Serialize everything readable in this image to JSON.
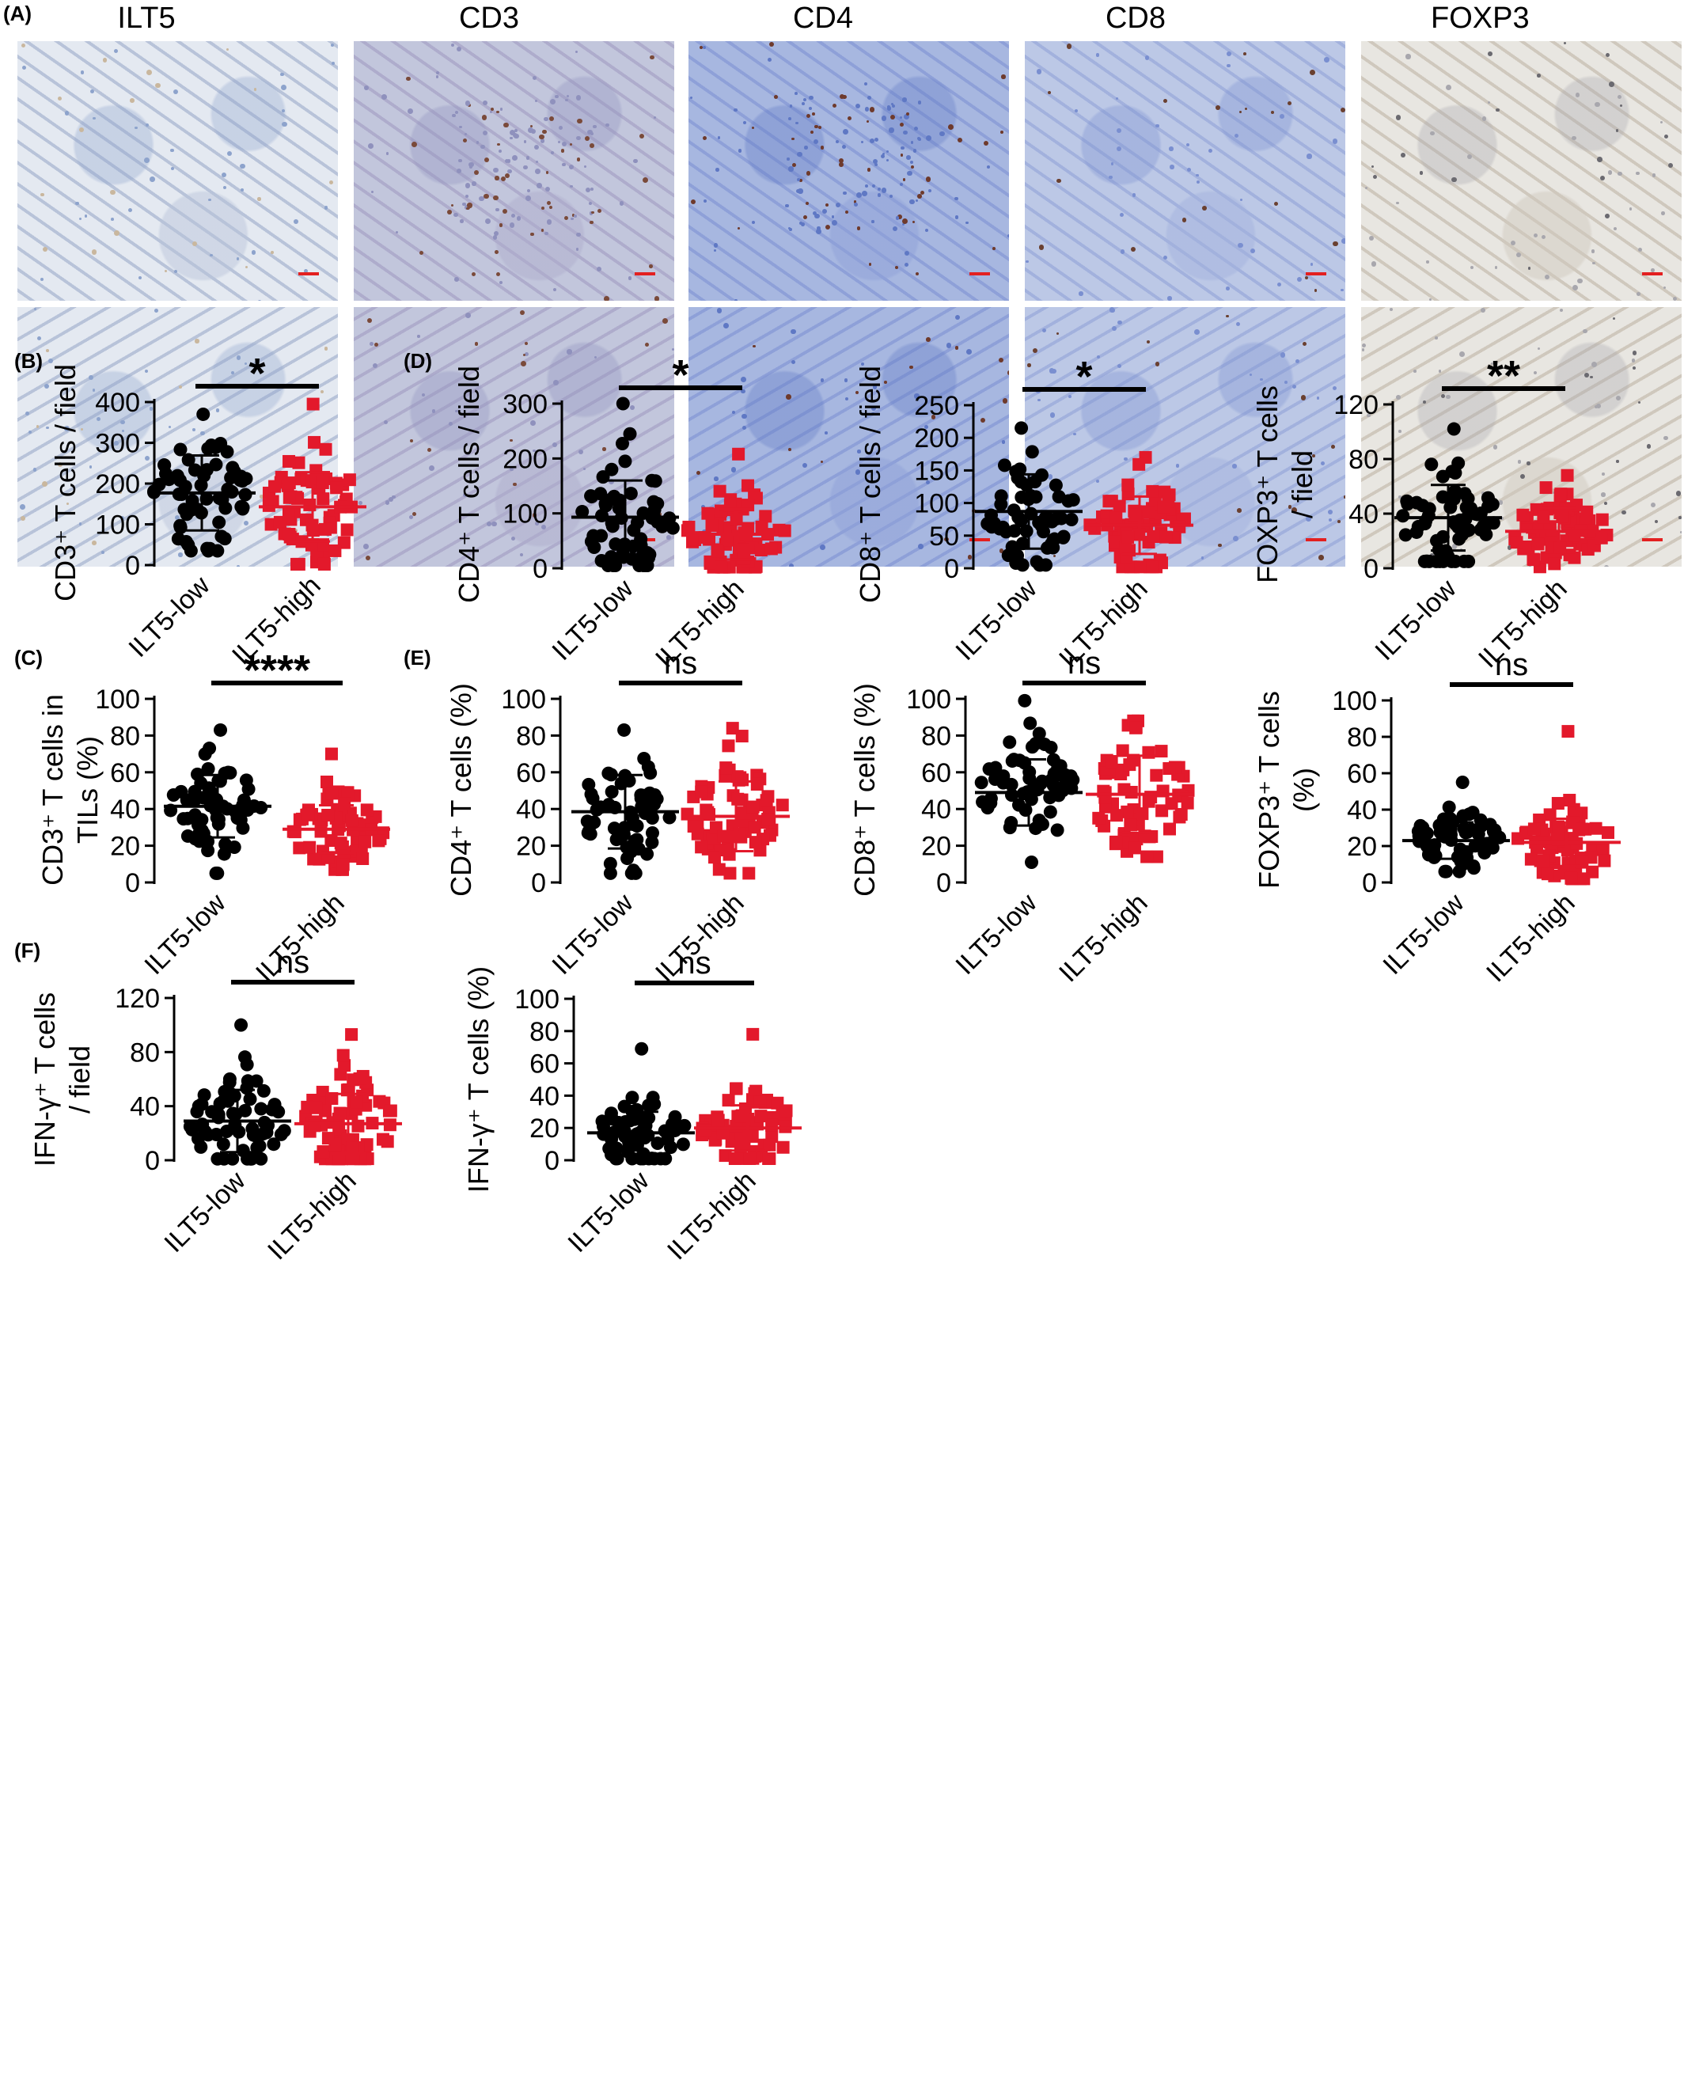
{
  "colors": {
    "low": "#000000",
    "high": "#e3192b",
    "scalebar": "#e32020"
  },
  "micrograph": {
    "panel_label": "(A)",
    "columns": [
      "ILT5",
      "CD3",
      "CD4",
      "CD8",
      "FOXP3"
    ],
    "rows": 2
  },
  "chart_data": [
    {
      "id": "B",
      "panel_label": "(B)",
      "type": "scatter",
      "ylabel": "CD3⁺ T cells / field",
      "categories": [
        "ILT5-low",
        "ILT5-high"
      ],
      "ylim": [
        0,
        400
      ],
      "yticks": [
        0,
        100,
        200,
        300,
        400
      ],
      "significance": "*",
      "series": [
        {
          "name": "ILT5-low",
          "mean": 177,
          "sd": 92,
          "min": 35,
          "max": 370,
          "n": 62,
          "marker": "circle"
        },
        {
          "name": "ILT5-high",
          "mean": 143,
          "sd": 85,
          "min": 2,
          "max": 395,
          "n": 70,
          "marker": "square"
        }
      ]
    },
    {
      "id": "D1",
      "panel_label": "(D)",
      "type": "scatter",
      "ylabel": "CD4⁺ T cells / field",
      "categories": [
        "ILT5-low",
        "ILT5-high"
      ],
      "ylim": [
        0,
        300
      ],
      "yticks": [
        0,
        100,
        200,
        300
      ],
      "significance": "*",
      "series": [
        {
          "name": "ILT5-low",
          "mean": 93,
          "sd": 67,
          "min": 5,
          "max": 300,
          "n": 62,
          "marker": "circle"
        },
        {
          "name": "ILT5-high",
          "mean": 62,
          "sd": 46,
          "min": 2,
          "max": 208,
          "n": 70,
          "marker": "square"
        }
      ]
    },
    {
      "id": "D2",
      "panel_label": "",
      "type": "scatter",
      "ylabel": "CD8⁺ T cells / field",
      "categories": [
        "ILT5-low",
        "ILT5-high"
      ],
      "ylim": [
        0,
        250
      ],
      "yticks": [
        0,
        50,
        100,
        150,
        200,
        250
      ],
      "significance": "*",
      "series": [
        {
          "name": "ILT5-low",
          "mean": 87,
          "sd": 57,
          "min": 5,
          "max": 215,
          "n": 62,
          "marker": "circle"
        },
        {
          "name": "ILT5-high",
          "mean": 66,
          "sd": 44,
          "min": 2,
          "max": 170,
          "n": 70,
          "marker": "square"
        }
      ]
    },
    {
      "id": "D3",
      "panel_label": "",
      "type": "scatter",
      "ylabel": "FOXP3⁺ T cells / field",
      "categories": [
        "ILT5-low",
        "ILT5-high"
      ],
      "ylim": [
        0,
        120
      ],
      "yticks": [
        0,
        40,
        80,
        120
      ],
      "significance": "**",
      "series": [
        {
          "name": "ILT5-low",
          "mean": 37,
          "sd": 24,
          "min": 5,
          "max": 102,
          "n": 62,
          "marker": "circle"
        },
        {
          "name": "ILT5-high",
          "mean": 27,
          "sd": 17,
          "min": 1,
          "max": 68,
          "n": 70,
          "marker": "square"
        }
      ]
    },
    {
      "id": "C",
      "panel_label": "(C)",
      "type": "scatter",
      "ylabel": "CD3⁺ T cells in TILs (%)",
      "categories": [
        "ILT5-low",
        "ILT5-high"
      ],
      "ylim": [
        0,
        100
      ],
      "yticks": [
        0,
        20,
        40,
        60,
        80,
        100
      ],
      "significance": "****",
      "series": [
        {
          "name": "ILT5-low",
          "mean": 41.5,
          "sd": 17,
          "min": 5,
          "max": 83,
          "n": 62,
          "marker": "circle"
        },
        {
          "name": "ILT5-high",
          "mean": 29,
          "sd": 13,
          "min": 7,
          "max": 70,
          "n": 70,
          "marker": "square"
        }
      ]
    },
    {
      "id": "E1",
      "panel_label": "(E)",
      "type": "scatter",
      "ylabel": "CD4⁺ T cells (%)",
      "categories": [
        "ILT5-low",
        "ILT5-high"
      ],
      "ylim": [
        0,
        100
      ],
      "yticks": [
        0,
        20,
        40,
        60,
        80,
        100
      ],
      "significance": "ns",
      "series": [
        {
          "name": "ILT5-low",
          "mean": 38.5,
          "sd": 20,
          "min": 5,
          "max": 83,
          "n": 62,
          "marker": "circle"
        },
        {
          "name": "ILT5-high",
          "mean": 36,
          "sd": 19,
          "min": 5,
          "max": 84,
          "n": 70,
          "marker": "square"
        }
      ]
    },
    {
      "id": "E2",
      "panel_label": "",
      "type": "scatter",
      "ylabel": "CD8⁺ T cells (%)",
      "categories": [
        "ILT5-low",
        "ILT5-high"
      ],
      "ylim": [
        0,
        100
      ],
      "yticks": [
        0,
        20,
        40,
        60,
        80,
        100
      ],
      "significance": "ns",
      "series": [
        {
          "name": "ILT5-low",
          "mean": 49,
          "sd": 18,
          "min": 11,
          "max": 99,
          "n": 62,
          "marker": "circle"
        },
        {
          "name": "ILT5-high",
          "mean": 48,
          "sd": 21,
          "min": 14,
          "max": 88,
          "n": 70,
          "marker": "square"
        }
      ]
    },
    {
      "id": "E3",
      "panel_label": "",
      "type": "scatter",
      "ylabel": "FOXP3⁺ T cells (%)",
      "categories": [
        "ILT5-low",
        "ILT5-high"
      ],
      "ylim": [
        0,
        100
      ],
      "yticks": [
        0,
        20,
        40,
        60,
        80,
        100
      ],
      "significance": "ns",
      "series": [
        {
          "name": "ILT5-low",
          "mean": 23,
          "sd": 10,
          "min": 6,
          "max": 55,
          "n": 62,
          "marker": "circle"
        },
        {
          "name": "ILT5-high",
          "mean": 22,
          "sd": 13,
          "min": 2,
          "max": 83,
          "n": 70,
          "marker": "square"
        }
      ]
    },
    {
      "id": "F1",
      "panel_label": "(F)",
      "type": "scatter",
      "ylabel": "IFN-γ⁺ T cells / field",
      "categories": [
        "ILT5-low",
        "ILT5-high"
      ],
      "ylim": [
        0,
        120
      ],
      "yticks": [
        0,
        40,
        80,
        120
      ],
      "significance": "ns",
      "series": [
        {
          "name": "ILT5-low",
          "mean": 29,
          "sd": 23,
          "min": 1,
          "max": 100,
          "n": 62,
          "marker": "circle"
        },
        {
          "name": "ILT5-high",
          "mean": 27,
          "sd": 22,
          "min": 1,
          "max": 93,
          "n": 70,
          "marker": "square"
        }
      ]
    },
    {
      "id": "F2",
      "panel_label": "",
      "type": "scatter",
      "ylabel": "IFN-γ⁺ T cells (%)",
      "categories": [
        "ILT5-low",
        "ILT5-high"
      ],
      "ylim": [
        0,
        100
      ],
      "yticks": [
        0,
        20,
        40,
        60,
        80,
        100
      ],
      "significance": "ns",
      "series": [
        {
          "name": "ILT5-low",
          "mean": 17,
          "sd": 13,
          "min": 1,
          "max": 69,
          "n": 62,
          "marker": "circle"
        },
        {
          "name": "ILT5-high",
          "mean": 20,
          "sd": 14,
          "min": 1,
          "max": 78,
          "n": 70,
          "marker": "square"
        }
      ]
    }
  ]
}
